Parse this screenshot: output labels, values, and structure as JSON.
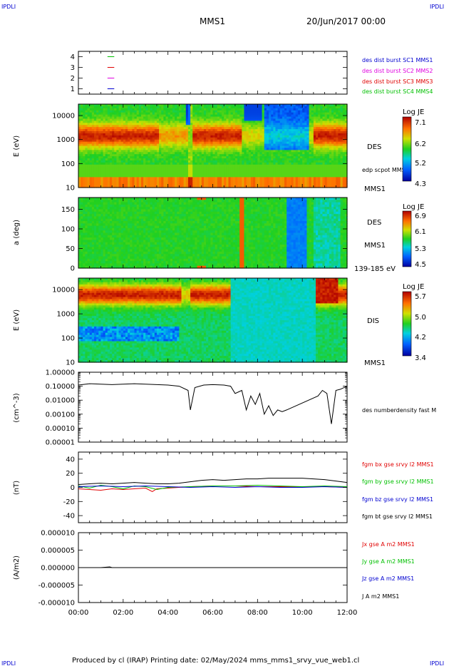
{
  "header": {
    "corner_tl": "IPDLI",
    "corner_tr": "IPDLI",
    "corner_bl": "IPDLI",
    "corner_br": "IPDLI",
    "mission": "MMS1",
    "datetime": "20/Jun/2017 00:00"
  },
  "footer": {
    "text": "Produced by cl (IRAP)   Printing date: 02/May/2024   mms_mms1_srvy_vue_web1.cl"
  },
  "time_axis": {
    "ticks": [
      "00:00",
      "02:00",
      "04:00",
      "06:00",
      "08:00",
      "10:00",
      "12:00"
    ],
    "range_hours": [
      0,
      12
    ]
  },
  "colors": {
    "green": "#00c000",
    "red": "#e00000",
    "magenta": "#e000e0",
    "blue": "#0000d0",
    "black": "#000000"
  },
  "panels": {
    "availability": {
      "yticks": [
        "4",
        "3",
        "2",
        "1"
      ],
      "legend": [
        {
          "label": "des dist burst SC1 MMS1",
          "color": "#0000d0"
        },
        {
          "label": "des dist burst SC2 MMS2",
          "color": "#e000e0"
        },
        {
          "label": "des dist burst SC3 MMS3",
          "color": "#e00000"
        },
        {
          "label": "des dist burst SC4 MMS4",
          "color": "#00c000"
        }
      ]
    },
    "des_energy": {
      "ylabel": "E (eV)",
      "yticks": [
        "10000",
        "1000",
        "100",
        "10"
      ],
      "species": "DES",
      "overlay": "edp scpot MMS1",
      "sc": "MMS1",
      "colorbar": {
        "title": "Log JE",
        "ticks": [
          "7.1",
          "6.2",
          "5.2",
          "4.3"
        ]
      }
    },
    "des_pitch": {
      "ylabel": "a (deg)",
      "yticks": [
        "150",
        "100",
        "50",
        "0"
      ],
      "species": "DES",
      "sc": "MMS1",
      "range": "139-185 eV",
      "colorbar": {
        "title": "Log JE",
        "ticks": [
          "6.9",
          "6.1",
          "5.3",
          "4.5"
        ]
      }
    },
    "dis_energy": {
      "ylabel": "E (eV)",
      "yticks": [
        "10000",
        "1000",
        "100",
        "10"
      ],
      "species": "DIS",
      "sc": "MMS1",
      "colorbar": {
        "title": "Log JE",
        "ticks": [
          "5.7",
          "5.0",
          "4.2",
          "3.4"
        ]
      }
    },
    "density": {
      "ylabel": "(cm^-3)",
      "yticks": [
        "1.00000",
        "0.10000",
        "0.01000",
        "0.00100",
        "0.00010",
        "0.00001"
      ],
      "legend": [
        {
          "label": "des numberdensity fast M",
          "color": "#000000"
        }
      ]
    },
    "bfield": {
      "ylabel": "(nT)",
      "yticks": [
        "40",
        "20",
        "0",
        "-20",
        "-40"
      ],
      "legend": [
        {
          "label": "fgm bx gse srvy l2 MMS1",
          "color": "#e00000"
        },
        {
          "label": "fgm by gse srvy l2 MMS1",
          "color": "#00c000"
        },
        {
          "label": "fgm bz gse srvy l2 MMS1",
          "color": "#0000d0"
        },
        {
          "label": "fgm bt gse srvy l2 MMS1",
          "color": "#000000"
        }
      ]
    },
    "current": {
      "ylabel": "(A/m2)",
      "yticks": [
        "0.000010",
        "0.000005",
        "0.000000",
        "-0.000005",
        "-0.000010"
      ],
      "legend": [
        {
          "label": "Jx gse A m2 MMS1",
          "color": "#e00000"
        },
        {
          "label": "Jy gse A m2 MMS1",
          "color": "#00c000"
        },
        {
          "label": "Jz gse A m2 MMS1",
          "color": "#0000d0"
        },
        {
          "label": "J A m2 MMS1",
          "color": "#000000"
        }
      ]
    }
  },
  "chart_data": [
    {
      "type": "line",
      "panel": "availability",
      "note": "burst availability markers near 01:15",
      "series": [
        {
          "name": "des dist burst SC4 MMS4",
          "x": [
            1.3,
            1.6
          ],
          "values": [
            4,
            4
          ]
        },
        {
          "name": "des dist burst SC3 MMS3",
          "x": [
            1.3,
            1.6
          ],
          "values": [
            3,
            3
          ]
        },
        {
          "name": "des dist burst SC2 MMS2",
          "x": [
            1.3,
            1.6
          ],
          "values": [
            2,
            2
          ]
        },
        {
          "name": "des dist burst SC1 MMS1",
          "x": [
            1.3,
            1.6
          ],
          "values": [
            1,
            1
          ]
        }
      ],
      "ylim": [
        0.5,
        4.5
      ]
    },
    {
      "type": "heatmap",
      "panel": "des_energy",
      "ylabel": "E (eV)",
      "yscale": "log",
      "ylim": [
        10,
        30000
      ],
      "xlim": [
        0,
        12
      ],
      "colorbar_range": [
        4.3,
        7.1
      ]
    },
    {
      "type": "heatmap",
      "panel": "des_pitch",
      "ylabel": "a (deg)",
      "ylim": [
        0,
        180
      ],
      "xlim": [
        0,
        12
      ],
      "colorbar_range": [
        4.5,
        6.9
      ]
    },
    {
      "type": "heatmap",
      "panel": "dis_energy",
      "ylabel": "E (eV)",
      "yscale": "log",
      "ylim": [
        10,
        30000
      ],
      "xlim": [
        0,
        12
      ],
      "colorbar_range": [
        3.4,
        5.7
      ]
    },
    {
      "type": "line",
      "panel": "density",
      "yscale": "log",
      "ylim": [
        1e-05,
        1.0
      ],
      "xlim": [
        0,
        12
      ],
      "series": [
        {
          "name": "des numberdensity fast M",
          "x": [
            0.0,
            0.5,
            1.0,
            1.5,
            2.0,
            2.5,
            3.0,
            3.5,
            4.0,
            4.5,
            4.9,
            5.0,
            5.2,
            5.6,
            6.0,
            6.5,
            6.8,
            7.0,
            7.3,
            7.5,
            7.7,
            7.9,
            8.1,
            8.3,
            8.5,
            8.7,
            8.9,
            9.1,
            9.3,
            10.7,
            10.9,
            11.1,
            11.3,
            11.5,
            11.7,
            12.0
          ],
          "values": [
            0.12,
            0.15,
            0.14,
            0.13,
            0.14,
            0.15,
            0.14,
            0.13,
            0.12,
            0.1,
            0.05,
            0.002,
            0.08,
            0.12,
            0.13,
            0.12,
            0.1,
            0.03,
            0.05,
            0.002,
            0.02,
            0.005,
            0.03,
            0.001,
            0.004,
            0.0008,
            0.002,
            0.0015,
            0.002,
            0.02,
            0.05,
            0.03,
            0.0002,
            0.05,
            0.06,
            0.1
          ]
        }
      ]
    },
    {
      "type": "line",
      "panel": "bfield",
      "ylim": [
        -50,
        50
      ],
      "xlim": [
        0,
        12
      ],
      "series": [
        {
          "name": "fgm bx gse srvy l2 MMS1",
          "x": [
            0,
            0.5,
            1.0,
            1.5,
            2.0,
            2.5,
            3.0,
            3.3,
            3.5,
            4.0,
            5.0,
            6.0,
            7.0,
            8.0,
            9.0,
            10.0,
            11.0,
            12.0
          ],
          "values": [
            -2,
            -3,
            -4,
            -2,
            -3,
            -2,
            -1,
            -6,
            -2,
            -1,
            1,
            2,
            2,
            1,
            1,
            1,
            1,
            0
          ]
        },
        {
          "name": "fgm by gse srvy l2 MMS1",
          "x": [
            0,
            0.5,
            1.0,
            1.5,
            2.0,
            2.5,
            3.0,
            3.5,
            4.0,
            5.0,
            6.0,
            7.0,
            8.0,
            9.0,
            10.0,
            11.0,
            12.0
          ],
          "values": [
            2,
            -1,
            3,
            1,
            -2,
            2,
            1,
            -3,
            0,
            1,
            2,
            2,
            3,
            2,
            1,
            2,
            1
          ]
        },
        {
          "name": "fgm bz gse srvy l2 MMS1",
          "x": [
            0,
            1,
            2,
            3,
            4,
            5,
            6,
            7,
            8,
            9,
            10,
            11,
            12
          ],
          "values": [
            1,
            2,
            1,
            2,
            1,
            0,
            1,
            0,
            1,
            0,
            0,
            1,
            0
          ]
        },
        {
          "name": "fgm bt gse srvy l2 MMS1",
          "x": [
            0,
            0.5,
            1.0,
            1.5,
            2.0,
            2.5,
            3.0,
            3.5,
            4.0,
            4.5,
            5.0,
            5.5,
            6.0,
            6.5,
            7.0,
            7.5,
            8.0,
            8.5,
            9.0,
            9.5,
            10.0,
            10.5,
            11.0,
            11.5,
            12.0
          ],
          "values": [
            4,
            5,
            6,
            5,
            6,
            7,
            6,
            5,
            5,
            6,
            8,
            10,
            11,
            10,
            11,
            12,
            12,
            13,
            13,
            13,
            13,
            12,
            11,
            9,
            7
          ]
        }
      ]
    },
    {
      "type": "line",
      "panel": "current",
      "ylim": [
        -1e-05,
        1e-05
      ],
      "xlim": [
        0,
        12
      ],
      "series": [
        {
          "name": "J A m2 MMS1",
          "x": [
            0,
            1.0,
            1.4,
            1.5,
            12
          ],
          "values": [
            0,
            0,
            2e-07,
            0,
            0
          ]
        }
      ]
    }
  ]
}
